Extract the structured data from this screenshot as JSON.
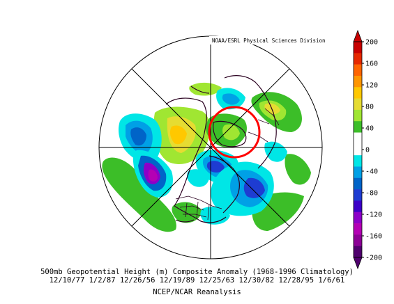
{
  "map": {
    "credit": "NOAA/ESRL Physical Sciences Division",
    "projection": "north-polar-stereographic",
    "highlight_circle_color": "#ff0000",
    "field": "500mb geopotential height composite anomaly"
  },
  "caption": {
    "line1": "500mb Geopotential Height (m) Composite Anomaly (1968-1996 Climatology)",
    "line2": "12/10/77 1/2/87 12/26/56 12/19/89 12/25/63 12/30/82 12/28/95 1/6/61",
    "line3": "NCEP/NCAR Reanalysis"
  },
  "colorbar": {
    "labels": [
      "200",
      "160",
      "120",
      "80",
      "40",
      "0",
      "-40",
      "-80",
      "-120",
      "-160",
      "-200"
    ],
    "colors": [
      "#c80000",
      "#e62800",
      "#ff6400",
      "#ff9600",
      "#ffc800",
      "#e6dc32",
      "#a0e632",
      "#3cbe28",
      "#ffffff",
      "#ffffff",
      "#00e6e6",
      "#00a0e6",
      "#0064c8",
      "#1e3cd2",
      "#3c00c8",
      "#8c00c8",
      "#b400b4",
      "#8c0096",
      "#50006e"
    ]
  }
}
